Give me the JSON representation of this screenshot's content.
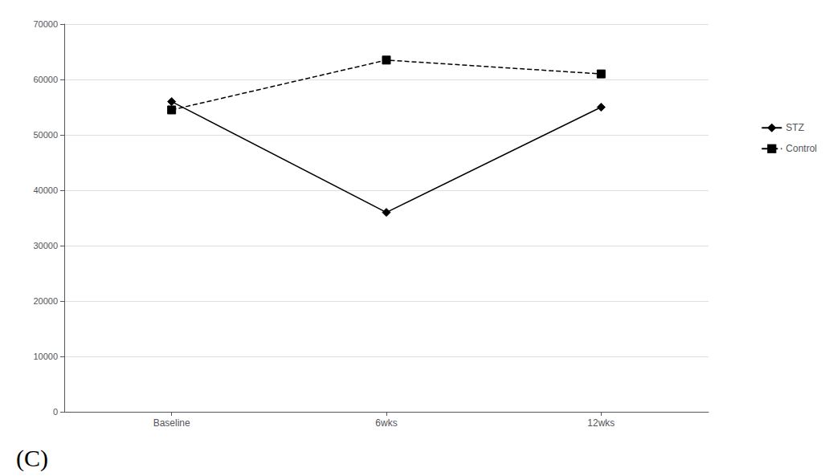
{
  "chart_data": {
    "type": "line",
    "categories": [
      "Baseline",
      "6wks",
      "12wks"
    ],
    "series": [
      {
        "name": "STZ",
        "color": "#000000",
        "marker": "diamond",
        "line_style": "solid",
        "values": [
          56000,
          36000,
          55000
        ]
      },
      {
        "name": "Control",
        "color": "#000000",
        "marker": "square",
        "line_style": "dashed",
        "values": [
          54500,
          63500,
          61000
        ]
      }
    ],
    "ylim": [
      0,
      70000
    ],
    "yticks": [
      0,
      10000,
      20000,
      30000,
      40000,
      50000,
      60000,
      70000
    ],
    "grid": true,
    "legend": "right",
    "annotations": [
      "(C)"
    ]
  }
}
